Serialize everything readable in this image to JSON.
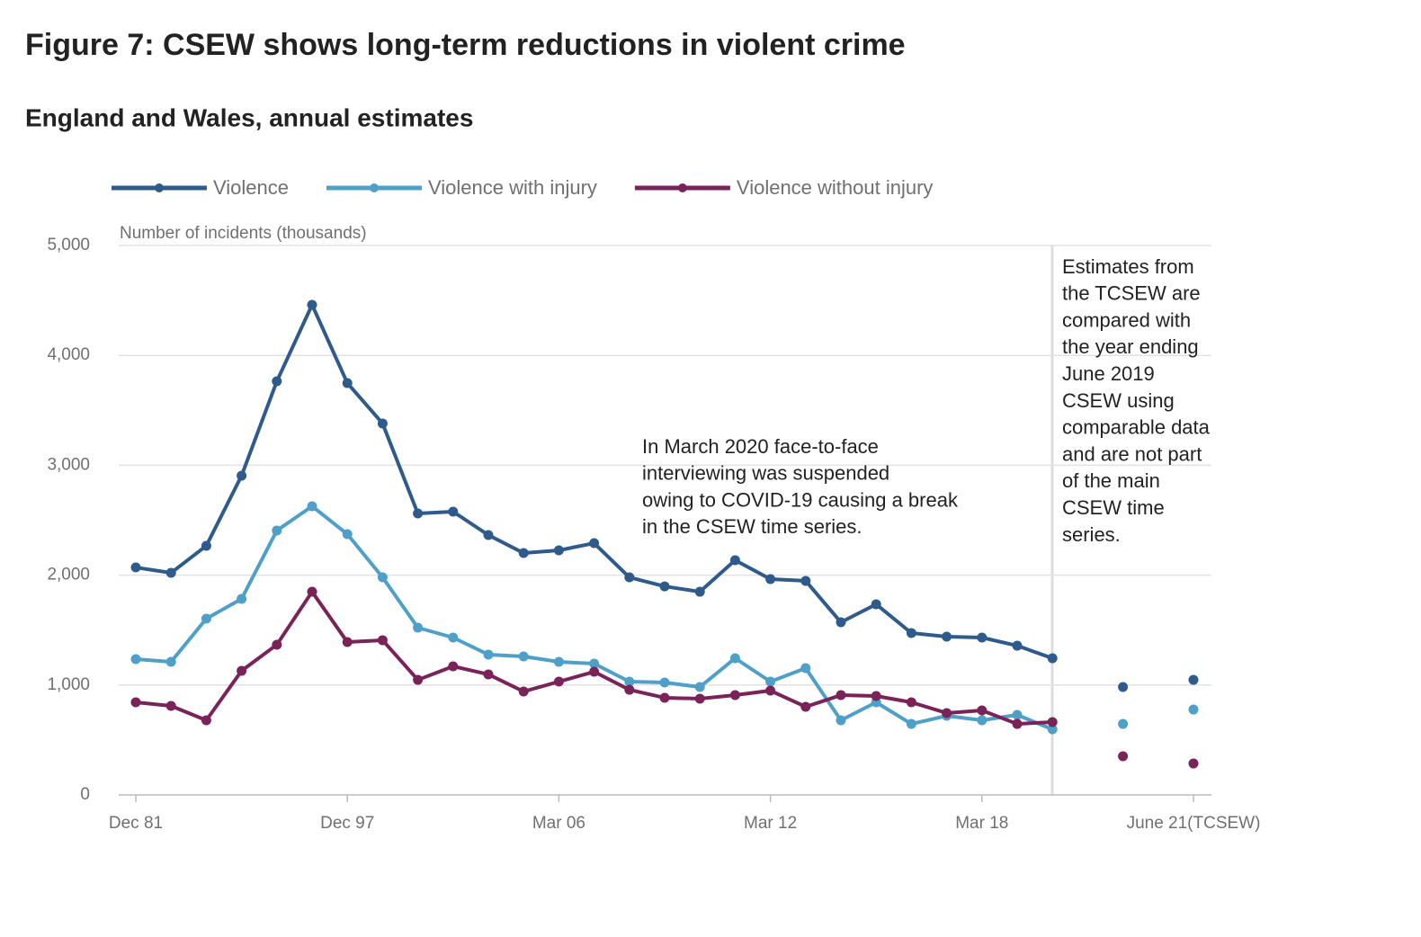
{
  "chart_data": {
    "type": "line",
    "title": "Figure 7: CSEW shows long-term reductions in violent crime",
    "subtitle": "England and Wales, annual estimates",
    "y_axis_label": "Number of incidents (thousands)",
    "categories": [
      "Dec 81",
      null,
      null,
      null,
      null,
      null,
      "Dec 97",
      null,
      null,
      null,
      null,
      null,
      "Mar 06",
      null,
      null,
      null,
      null,
      null,
      "Mar 12",
      null,
      null,
      null,
      null,
      null,
      "Mar 18",
      null,
      null,
      null,
      null,
      null,
      "June 21(TCSEW)"
    ],
    "series": [
      {
        "name": "Violence",
        "color": "#2e5b8c",
        "values": [
          2070,
          2021,
          2267,
          2905,
          3764,
          4460,
          3748,
          3380,
          2561,
          2578,
          2365,
          2201,
          2226,
          2291,
          1980,
          1898,
          1849,
          2136,
          1964,
          1948,
          1571,
          1735,
          1473,
          1440,
          1432,
          1358,
          1244,
          null,
          982,
          null,
          1047
        ]
      },
      {
        "name": "Violence with injury",
        "color": "#4fa0c8",
        "values": [
          1236,
          1211,
          1604,
          1784,
          2406,
          2627,
          2373,
          1980,
          1522,
          1432,
          1277,
          1260,
          1211,
          1195,
          1031,
          1023,
          982,
          1244,
          1031,
          1154,
          679,
          843,
          646,
          720,
          679,
          728,
          597,
          null,
          646,
          null,
          777
        ]
      },
      {
        "name": "Violence without injury",
        "color": "#7a2358",
        "values": [
          843,
          810,
          679,
          1129,
          1367,
          1849,
          1391,
          1408,
          1047,
          1170,
          1097,
          941,
          1031,
          1121,
          957,
          884,
          876,
          908,
          949,
          802,
          908,
          900,
          843,
          745,
          769,
          646,
          663,
          null,
          352,
          null,
          286
        ]
      }
    ],
    "ylim": [
      0,
      5000
    ],
    "yticks": [
      0,
      {
        "value": 1000,
        "label": "1,000"
      },
      {
        "value": 2000,
        "label": "2,000"
      },
      {
        "value": 3000,
        "label": "3,000"
      },
      {
        "value": 4000,
        "label": "4,000"
      },
      {
        "value": 5000,
        "label": "5,000"
      }
    ],
    "grid": true,
    "legend": "top",
    "annotations": [
      [
        "In March 2020 face-to-face",
        "interviewing was suspended",
        "owing to COVID-19 causing a break",
        "in the CSEW time series."
      ],
      [
        "Estimates from",
        "the TCSEW are",
        "compared with",
        "the year ending",
        "June 2019",
        "CSEW using",
        "comparable data",
        "and are not part",
        "of the main",
        "CSEW time",
        "series."
      ]
    ]
  }
}
